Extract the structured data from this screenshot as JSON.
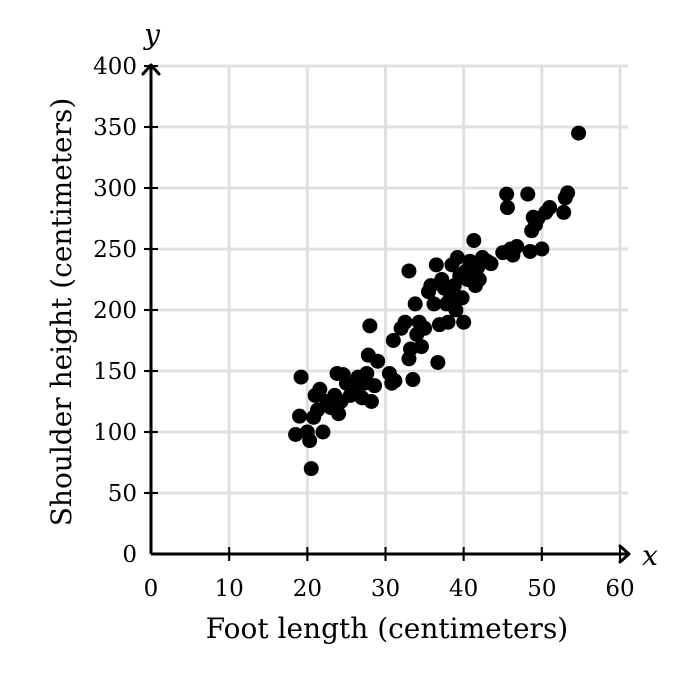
{
  "chart_data": {
    "type": "scatter",
    "title": "",
    "xlabel": "Foot length (centimeters)",
    "ylabel": "Shoulder height (centimeters)",
    "x_axis_letter": "x",
    "y_axis_letter": "y",
    "xlim": [
      0,
      60
    ],
    "ylim": [
      0,
      400
    ],
    "x_ticks": [
      0,
      10,
      20,
      30,
      40,
      50,
      60
    ],
    "y_ticks": [
      0,
      50,
      100,
      150,
      200,
      250,
      300,
      350,
      400
    ],
    "grid": true,
    "colors": {
      "grid": "#e0e0e0",
      "axis": "#000000",
      "points": "#000000"
    },
    "points": [
      [
        18.5,
        98
      ],
      [
        19,
        113
      ],
      [
        19.2,
        145
      ],
      [
        20,
        100
      ],
      [
        20.3,
        93
      ],
      [
        20.5,
        70
      ],
      [
        20.8,
        112
      ],
      [
        21,
        130
      ],
      [
        21.3,
        118
      ],
      [
        21.6,
        135
      ],
      [
        22,
        100
      ],
      [
        22.5,
        125
      ],
      [
        23,
        120
      ],
      [
        23.5,
        130
      ],
      [
        23.8,
        148
      ],
      [
        24,
        115
      ],
      [
        24.3,
        125
      ],
      [
        24.6,
        147
      ],
      [
        25,
        140
      ],
      [
        25.5,
        130
      ],
      [
        26,
        135
      ],
      [
        26.5,
        145
      ],
      [
        27,
        128
      ],
      [
        27.3,
        140
      ],
      [
        27.6,
        148
      ],
      [
        27.8,
        163
      ],
      [
        28,
        187
      ],
      [
        28.2,
        125
      ],
      [
        28.6,
        138
      ],
      [
        29,
        158
      ],
      [
        30.5,
        148
      ],
      [
        30.8,
        140
      ],
      [
        31,
        175
      ],
      [
        31.2,
        142
      ],
      [
        32,
        185
      ],
      [
        32.5,
        190
      ],
      [
        33,
        160
      ],
      [
        33.2,
        168
      ],
      [
        33.5,
        143
      ],
      [
        33,
        232
      ],
      [
        33.8,
        205
      ],
      [
        34,
        180
      ],
      [
        34.3,
        190
      ],
      [
        34.6,
        170
      ],
      [
        35,
        185
      ],
      [
        35.5,
        215
      ],
      [
        35.8,
        220
      ],
      [
        36.2,
        205
      ],
      [
        36.5,
        237
      ],
      [
        36.7,
        157
      ],
      [
        36.9,
        188
      ],
      [
        37.2,
        225
      ],
      [
        37.5,
        218
      ],
      [
        37.8,
        205
      ],
      [
        38,
        190
      ],
      [
        38.3,
        210
      ],
      [
        38.5,
        237
      ],
      [
        38.8,
        220
      ],
      [
        39,
        200
      ],
      [
        39.2,
        243
      ],
      [
        39.5,
        228
      ],
      [
        39.8,
        210
      ],
      [
        40,
        190
      ],
      [
        40.3,
        232
      ],
      [
        40.5,
        225
      ],
      [
        40.8,
        240
      ],
      [
        41,
        228
      ],
      [
        41.3,
        257
      ],
      [
        41.5,
        220
      ],
      [
        41.8,
        235
      ],
      [
        42,
        225
      ],
      [
        42.4,
        243
      ],
      [
        43,
        240
      ],
      [
        43.5,
        238
      ],
      [
        45,
        247
      ],
      [
        45.5,
        295
      ],
      [
        45.6,
        284
      ],
      [
        46,
        250
      ],
      [
        46.3,
        245
      ],
      [
        46.8,
        252
      ],
      [
        48.2,
        295
      ],
      [
        48.5,
        248
      ],
      [
        48.7,
        265
      ],
      [
        48.9,
        276
      ],
      [
        49.2,
        270
      ],
      [
        49.5,
        275
      ],
      [
        50,
        250
      ],
      [
        50.5,
        280
      ],
      [
        51,
        284
      ],
      [
        52.8,
        280
      ],
      [
        53,
        292
      ],
      [
        53.3,
        296
      ],
      [
        54.7,
        345
      ]
    ]
  }
}
